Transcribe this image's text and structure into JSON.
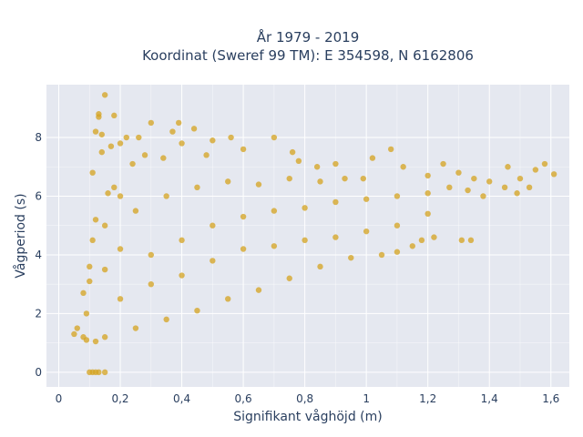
{
  "chart_data": {
    "type": "scatter",
    "title_lines": [
      "År 1979 - 2019",
      "Koordinat (Sweref 99 TM): E 354598, N 6162806"
    ],
    "xlabel": "Signifikant våghöjd (m)",
    "ylabel": "Vågperiod (s)",
    "xlim": [
      -0.04,
      1.66
    ],
    "ylim": [
      -0.5,
      9.8
    ],
    "x_ticks": [
      0,
      0.2,
      0.4,
      0.6,
      0.8,
      1.0,
      1.2,
      1.4,
      1.6
    ],
    "x_tick_labels": [
      "0",
      "0,2",
      "0,4",
      "0,6",
      "0,8",
      "1",
      "1,2",
      "1,4",
      "1,6"
    ],
    "y_ticks": [
      0,
      2,
      4,
      6,
      8
    ],
    "y_tick_labels": [
      "0",
      "2",
      "4",
      "6",
      "8"
    ],
    "grid": true,
    "legend": "none",
    "colors": {
      "marker": "#d4a31f",
      "plot_bg": "#e5e8f0",
      "grid": "#ffffff",
      "text": "#2a3f5f"
    },
    "series": [
      {
        "values": [
          [
            0.05,
            1.3
          ],
          [
            0.06,
            1.5
          ],
          [
            0.08,
            1.2
          ],
          [
            0.08,
            2.7
          ],
          [
            0.09,
            1.1
          ],
          [
            0.09,
            2.0
          ],
          [
            0.1,
            3.1
          ],
          [
            0.1,
            3.6
          ],
          [
            0.11,
            4.5
          ],
          [
            0.11,
            6.8
          ],
          [
            0.12,
            5.2
          ],
          [
            0.12,
            8.2
          ],
          [
            0.13,
            8.7
          ],
          [
            0.13,
            8.8
          ],
          [
            0.14,
            7.5
          ],
          [
            0.14,
            8.1
          ],
          [
            0.15,
            9.45
          ],
          [
            0.16,
            6.1
          ],
          [
            0.17,
            7.7
          ],
          [
            0.18,
            8.75
          ],
          [
            0.18,
            6.3
          ],
          [
            0.2,
            7.8
          ],
          [
            0.22,
            8.0
          ],
          [
            0.24,
            7.1
          ],
          [
            0.26,
            8.0
          ],
          [
            0.28,
            7.4
          ],
          [
            0.3,
            8.5
          ],
          [
            0.34,
            7.3
          ],
          [
            0.37,
            8.2
          ],
          [
            0.39,
            8.5
          ],
          [
            0.4,
            7.8
          ],
          [
            0.44,
            8.3
          ],
          [
            0.48,
            7.4
          ],
          [
            0.5,
            7.9
          ],
          [
            0.56,
            8.0
          ],
          [
            0.6,
            7.6
          ],
          [
            0.7,
            8.0
          ],
          [
            0.76,
            7.5
          ],
          [
            0.78,
            7.2
          ],
          [
            0.84,
            7.0
          ],
          [
            0.9,
            7.1
          ],
          [
            0.93,
            6.6
          ],
          [
            0.99,
            6.6
          ],
          [
            1.02,
            7.3
          ],
          [
            1.08,
            7.6
          ],
          [
            1.12,
            7.0
          ],
          [
            1.2,
            6.7
          ],
          [
            1.25,
            7.1
          ],
          [
            1.3,
            6.8
          ],
          [
            1.35,
            6.6
          ],
          [
            1.4,
            6.5
          ],
          [
            1.45,
            6.3
          ],
          [
            1.5,
            6.6
          ],
          [
            1.55,
            6.9
          ],
          [
            1.58,
            7.1
          ],
          [
            1.61,
            6.75
          ],
          [
            1.46,
            7.0
          ],
          [
            1.49,
            6.1
          ],
          [
            1.53,
            6.3
          ],
          [
            1.33,
            6.2
          ],
          [
            1.38,
            6.0
          ],
          [
            1.27,
            6.3
          ],
          [
            1.31,
            4.5
          ],
          [
            1.34,
            4.5
          ],
          [
            1.22,
            4.6
          ],
          [
            1.18,
            4.5
          ],
          [
            1.15,
            4.3
          ],
          [
            1.1,
            4.1
          ],
          [
            1.05,
            4.0
          ],
          [
            0.95,
            3.9
          ],
          [
            0.85,
            3.6
          ],
          [
            0.75,
            3.2
          ],
          [
            0.65,
            2.8
          ],
          [
            0.55,
            2.5
          ],
          [
            0.45,
            2.1
          ],
          [
            0.35,
            1.8
          ],
          [
            0.25,
            1.5
          ],
          [
            0.15,
            1.2
          ],
          [
            0.12,
            1.05
          ],
          [
            0.1,
            0.0
          ],
          [
            0.11,
            0.0
          ],
          [
            0.12,
            0.0
          ],
          [
            0.13,
            0.0
          ],
          [
            0.15,
            0.0
          ],
          [
            0.3,
            4.0
          ],
          [
            0.4,
            4.5
          ],
          [
            0.5,
            5.0
          ],
          [
            0.6,
            5.3
          ],
          [
            0.7,
            5.5
          ],
          [
            0.8,
            5.6
          ],
          [
            0.9,
            5.8
          ],
          [
            1.0,
            5.9
          ],
          [
            1.1,
            6.0
          ],
          [
            1.2,
            6.1
          ],
          [
            0.3,
            3.0
          ],
          [
            0.4,
            3.3
          ],
          [
            0.5,
            3.8
          ],
          [
            0.6,
            4.2
          ],
          [
            0.7,
            4.3
          ],
          [
            0.8,
            4.5
          ],
          [
            0.9,
            4.6
          ],
          [
            1.0,
            4.8
          ],
          [
            1.1,
            5.0
          ],
          [
            1.2,
            5.4
          ],
          [
            0.2,
            2.5
          ],
          [
            0.2,
            4.2
          ],
          [
            0.2,
            6.0
          ],
          [
            0.15,
            3.5
          ],
          [
            0.15,
            5.0
          ],
          [
            0.25,
            5.5
          ],
          [
            0.35,
            6.0
          ],
          [
            0.45,
            6.3
          ],
          [
            0.55,
            6.5
          ],
          [
            0.65,
            6.4
          ],
          [
            0.75,
            6.6
          ],
          [
            0.85,
            6.5
          ]
        ]
      }
    ]
  }
}
